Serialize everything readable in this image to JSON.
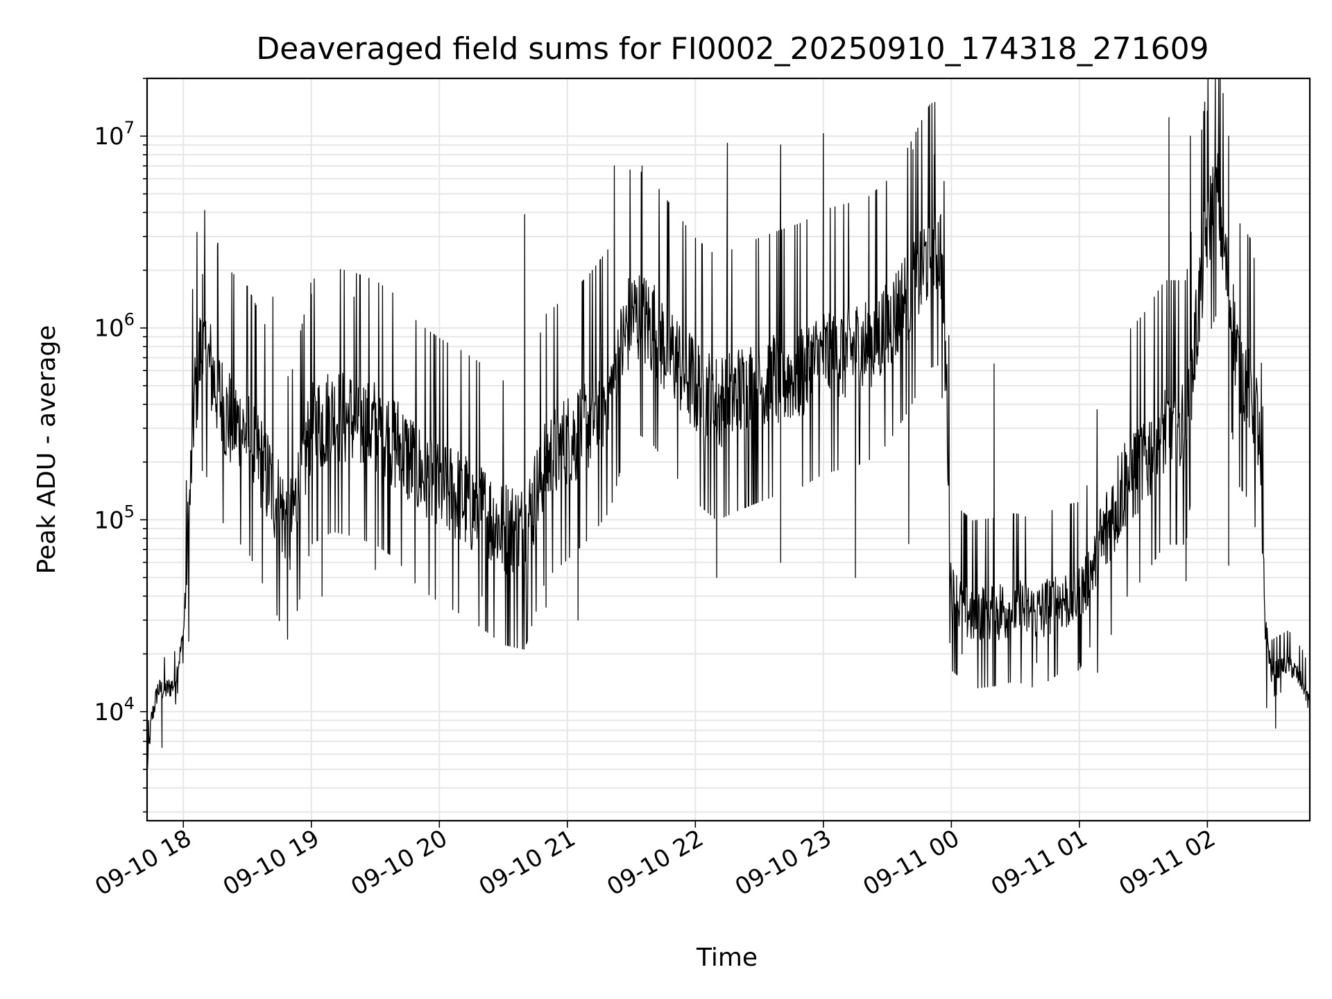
{
  "chart_data": {
    "type": "line",
    "title": "Deaveraged field sums for FI0002_20250910_174318_271609",
    "xlabel": "Time",
    "ylabel": "Peak ADU - average",
    "yscale": "log",
    "ylim": [
      2700,
      20000000
    ],
    "xlim": [
      "2025-09-10 17:43",
      "2025-09-11 02:48"
    ],
    "grid": true,
    "line_color": "#000000",
    "grid_color": "#e6e6e6",
    "x_ticks": [
      {
        "label": "09-10 18",
        "t": "2025-09-10 18:00"
      },
      {
        "label": "09-10 19",
        "t": "2025-09-10 19:00"
      },
      {
        "label": "09-10 20",
        "t": "2025-09-10 20:00"
      },
      {
        "label": "09-10 21",
        "t": "2025-09-10 21:00"
      },
      {
        "label": "09-10 22",
        "t": "2025-09-10 22:00"
      },
      {
        "label": "09-10 23",
        "t": "2025-09-10 23:00"
      },
      {
        "label": "09-11 00",
        "t": "2025-09-11 00:00"
      },
      {
        "label": "09-11 01",
        "t": "2025-09-11 01:00"
      },
      {
        "label": "09-11 02",
        "t": "2025-09-11 02:00"
      }
    ],
    "y_ticks": [
      {
        "base": "10",
        "exp": "4",
        "value": 10000
      },
      {
        "base": "10",
        "exp": "5",
        "value": 100000
      },
      {
        "base": "10",
        "exp": "6",
        "value": 1000000
      },
      {
        "base": "10",
        "exp": "7",
        "value": 10000000
      }
    ],
    "series": [
      {
        "points": [
          [
            "2025-09-10 17:43",
            5000
          ],
          [
            "2025-09-10 17:45",
            9000
          ],
          [
            "2025-09-10 17:48",
            13000
          ],
          [
            "2025-09-10 17:52",
            13000
          ],
          [
            "2025-09-10 17:56",
            14000
          ],
          [
            "2025-09-10 18:00",
            25000
          ],
          [
            "2025-09-10 18:03",
            120000
          ],
          [
            "2025-09-10 18:05",
            400000
          ],
          [
            "2025-09-10 18:08",
            750000
          ],
          [
            "2025-09-10 18:12",
            650000
          ],
          [
            "2025-09-10 18:20",
            350000
          ],
          [
            "2025-09-10 18:30",
            280000
          ],
          [
            "2025-09-10 18:40",
            160000
          ],
          [
            "2025-09-10 18:50",
            90000
          ],
          [
            "2025-09-10 19:00",
            300000
          ],
          [
            "2025-09-10 19:10",
            350000
          ],
          [
            "2025-09-10 19:20",
            330000
          ],
          [
            "2025-09-10 19:30",
            300000
          ],
          [
            "2025-09-10 19:40",
            250000
          ],
          [
            "2025-09-10 19:50",
            180000
          ],
          [
            "2025-09-10 20:00",
            150000
          ],
          [
            "2025-09-10 20:10",
            130000
          ],
          [
            "2025-09-10 20:20",
            110000
          ],
          [
            "2025-09-10 20:30",
            90000
          ],
          [
            "2025-09-10 20:40",
            85000
          ],
          [
            "2025-09-10 20:50",
            200000
          ],
          [
            "2025-09-10 21:00",
            250000
          ],
          [
            "2025-09-10 21:10",
            320000
          ],
          [
            "2025-09-10 21:20",
            450000
          ],
          [
            "2025-09-10 21:30",
            1200000
          ],
          [
            "2025-09-10 21:40",
            1000000
          ],
          [
            "2025-09-10 21:50",
            700000
          ],
          [
            "2025-09-10 22:00",
            500000
          ],
          [
            "2025-09-10 22:10",
            400000
          ],
          [
            "2025-09-10 22:20",
            450000
          ],
          [
            "2025-09-10 22:30",
            500000
          ],
          [
            "2025-09-10 22:40",
            550000
          ],
          [
            "2025-09-10 22:50",
            600000
          ],
          [
            "2025-09-10 23:00",
            700000
          ],
          [
            "2025-09-10 23:10",
            750000
          ],
          [
            "2025-09-10 23:20",
            800000
          ],
          [
            "2025-09-10 23:30",
            1000000
          ],
          [
            "2025-09-10 23:40",
            1500000
          ],
          [
            "2025-09-10 23:50",
            2500000
          ],
          [
            "2025-09-10 23:55",
            2600000
          ],
          [
            "2025-09-10 23:58",
            400000
          ],
          [
            "2025-09-11 00:00",
            40000
          ],
          [
            "2025-09-11 00:10",
            32000
          ],
          [
            "2025-09-11 00:20",
            33000
          ],
          [
            "2025-09-11 00:30",
            35000
          ],
          [
            "2025-09-11 00:40",
            32000
          ],
          [
            "2025-09-11 00:50",
            38000
          ],
          [
            "2025-09-11 01:00",
            40000
          ],
          [
            "2025-09-11 01:10",
            70000
          ],
          [
            "2025-09-11 01:20",
            150000
          ],
          [
            "2025-09-11 01:30",
            200000
          ],
          [
            "2025-09-11 01:40",
            300000
          ],
          [
            "2025-09-11 01:50",
            300000
          ],
          [
            "2025-09-11 02:00",
            3500000
          ],
          [
            "2025-09-11 02:05",
            5000000
          ],
          [
            "2025-09-11 02:10",
            1500000
          ],
          [
            "2025-09-11 02:15",
            600000
          ],
          [
            "2025-09-11 02:20",
            500000
          ],
          [
            "2025-09-11 02:24",
            300000
          ],
          [
            "2025-09-11 02:27",
            30000
          ],
          [
            "2025-09-11 02:30",
            16000
          ],
          [
            "2025-09-11 02:38",
            18000
          ],
          [
            "2025-09-11 02:45",
            14000
          ],
          [
            "2025-09-11 02:48",
            11000
          ]
        ],
        "spikes": [
          [
            "2025-09-10 18:09",
            1900000
          ],
          [
            "2025-09-10 18:16",
            2700000
          ],
          [
            "2025-09-10 18:42",
            1450000
          ],
          [
            "2025-09-10 19:00",
            1500000
          ],
          [
            "2025-09-10 19:20",
            1450000
          ],
          [
            "2025-09-10 20:40",
            3900000
          ],
          [
            "2025-09-10 21:22",
            7000000
          ],
          [
            "2025-09-10 21:35",
            7000000
          ],
          [
            "2025-09-10 22:15",
            9200000
          ],
          [
            "2025-09-10 22:40",
            9000000
          ],
          [
            "2025-09-10 23:00",
            10300000
          ],
          [
            "2025-09-10 23:42",
            8500000
          ],
          [
            "2025-09-10 23:52",
            8000000
          ],
          [
            "2025-09-11 00:20",
            650000
          ],
          [
            "2025-09-11 01:42",
            12500000
          ],
          [
            "2025-09-11 01:52",
            10000000
          ],
          [
            "2025-09-11 02:00",
            13500000
          ],
          [
            "2025-09-11 02:10",
            10000000
          ],
          [
            "2025-09-11 02:22",
            1100000
          ]
        ],
        "dips": [
          [
            "2025-09-10 17:50",
            6500
          ],
          [
            "2025-09-10 18:50",
            55000
          ],
          [
            "2025-09-10 19:05",
            40000
          ],
          [
            "2025-09-10 19:30",
            55000
          ],
          [
            "2025-09-10 20:20",
            40000
          ],
          [
            "2025-09-10 20:50",
            35000
          ],
          [
            "2025-09-10 21:05",
            30000
          ],
          [
            "2025-09-10 22:10",
            50000
          ],
          [
            "2025-09-10 22:40",
            60000
          ],
          [
            "2025-09-10 23:15",
            50000
          ],
          [
            "2025-09-10 23:40",
            75000
          ],
          [
            "2025-09-11 00:05",
            20000
          ],
          [
            "2025-09-11 00:40",
            18000
          ],
          [
            "2025-09-11 01:00",
            18000
          ],
          [
            "2025-09-11 01:50",
            48000
          ],
          [
            "2025-09-11 02:10",
            58000
          ],
          [
            "2025-09-11 02:32",
            8200
          ]
        ]
      }
    ]
  }
}
